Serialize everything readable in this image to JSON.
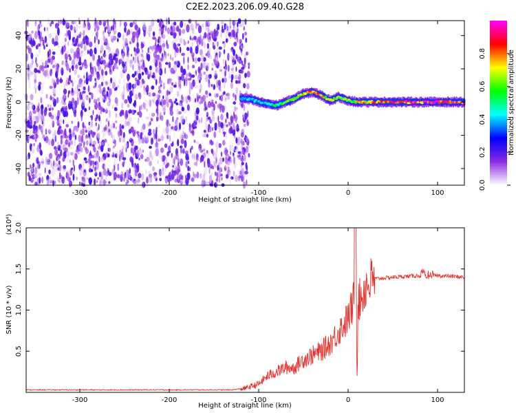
{
  "title": "C2E2.2023.206.09.40.G28",
  "chart_data": [
    {
      "type": "heatmap",
      "xlabel": "Height of straight line (km)",
      "ylabel": "Frequency (Hz)",
      "xlim": [
        -360,
        130
      ],
      "ylim": [
        -50,
        49
      ],
      "xticks": [
        -300,
        -200,
        -100,
        0,
        100
      ],
      "yticks": [
        -40,
        -20,
        0,
        20,
        40
      ],
      "colorbar": {
        "label": "Normalized spectral amplitude",
        "range": [
          0,
          1
        ],
        "ticks": [
          "0.0",
          "0.2",
          "0.4",
          "0.6",
          "0.8"
        ],
        "colors": [
          "#ffffff",
          "#8a2be2",
          "#0000ff",
          "#00ffff",
          "#00ff00",
          "#ffff00",
          "#ff0000",
          "#ff00ff"
        ]
      },
      "noise_region_x": [
        -360,
        -120
      ],
      "ridge": {
        "x": [
          -120,
          -110,
          -100,
          -90,
          -80,
          -70,
          -60,
          -50,
          -40,
          -30,
          -20,
          -10,
          0,
          10,
          50,
          90,
          130
        ],
        "freq": [
          2,
          2,
          0,
          -1,
          -2,
          0,
          2,
          5,
          6,
          4,
          1,
          3,
          1,
          0,
          0,
          0,
          0
        ],
        "amplitude": [
          0.35,
          0.45,
          0.4,
          0.45,
          0.55,
          0.6,
          0.65,
          0.75,
          0.85,
          0.8,
          0.7,
          0.65,
          0.7,
          0.75,
          0.9,
          0.95,
          0.9
        ]
      }
    },
    {
      "type": "line",
      "xlabel": "Height of straight line (km)",
      "ylabel": "SNR (10 * v/v)",
      "yscale_label": "(x10⁴)",
      "xlim": [
        -360,
        130
      ],
      "ylim": [
        0,
        2.0
      ],
      "xticks": [
        -300,
        -200,
        -100,
        0,
        100
      ],
      "yticks": [
        0.5,
        1.0,
        1.5,
        2.0
      ],
      "ytick_labels": [
        "0.5",
        "1.0",
        "1.5",
        "2.0"
      ],
      "color": "#e8302a",
      "series": [
        {
          "x": [
            -360,
            -300,
            -200,
            -130,
            -115,
            -100,
            -90,
            -80,
            -70,
            -60,
            -50,
            -40,
            -30,
            -20,
            -10,
            0,
            5,
            8,
            12,
            20,
            30,
            50,
            80,
            100,
            130
          ],
          "values": [
            0.03,
            0.03,
            0.03,
            0.03,
            0.05,
            0.1,
            0.2,
            0.25,
            0.3,
            0.3,
            0.4,
            0.45,
            0.5,
            0.6,
            0.75,
            0.9,
            1.05,
            1.2,
            1.1,
            1.3,
            1.38,
            1.4,
            1.42,
            1.42,
            1.4
          ]
        }
      ]
    }
  ]
}
